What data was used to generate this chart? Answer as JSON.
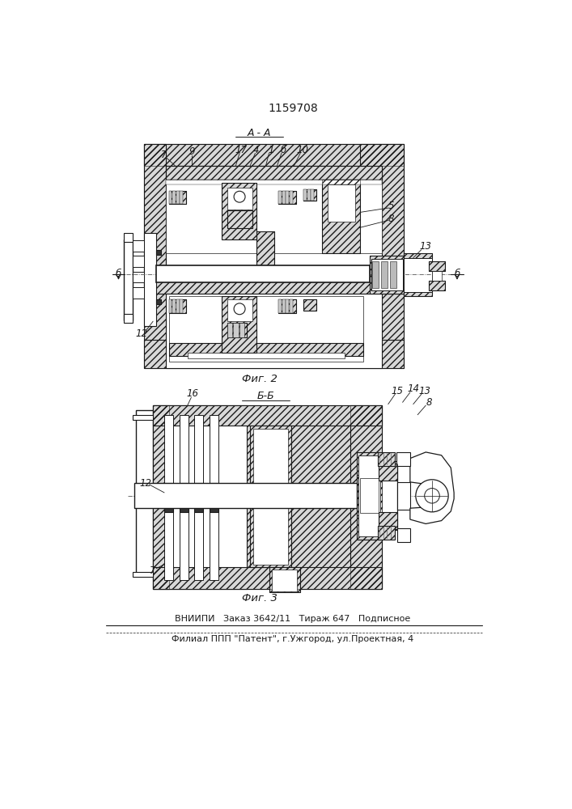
{
  "title": "1159708",
  "fig2_label": "Фиг. 2",
  "fig3_label": "Фиг. 3",
  "section_aa": "А - А",
  "section_bb": "Б-Б",
  "footer1": "ВНИИПИ   Заказ 3642/11   Тираж 647   Подписное",
  "footer2": "Филиал ППП \"Патент\", г.Ужгород, ул.Проектная, 4",
  "lc": "#1a1a1a",
  "hatch_fc": "#d8d8d8"
}
